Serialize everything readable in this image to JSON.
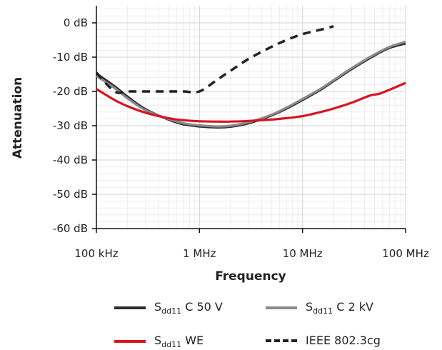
{
  "chart_data": {
    "type": "line",
    "title": "",
    "xlabel": "Frequency",
    "ylabel": "Attenuation",
    "x_scale": "log",
    "xlim": [
      0.1,
      100
    ],
    "ylim": [
      -60,
      5
    ],
    "x_ticks": [
      0.1,
      1,
      10,
      100
    ],
    "x_tick_labels": [
      "100 kHz",
      "1 MHz",
      "10 MHz",
      "100 MHz"
    ],
    "y_ticks": [
      0,
      -10,
      -20,
      -30,
      -40,
      -50,
      -60
    ],
    "y_tick_labels": [
      "0 dB",
      "-10 dB",
      "-20 dB",
      "-30 dB",
      "-40 dB",
      "-50 dB",
      "-60 dB"
    ],
    "grid": true,
    "legend_position": "bottom",
    "series": [
      {
        "name": "Sdd11 C 50 V",
        "label_main": "S",
        "label_sub": "dd11",
        "label_rest": " C 50 V",
        "color": "#2b2b2b",
        "style": "solid",
        "x": [
          0.1,
          0.15,
          0.2,
          0.3,
          0.5,
          0.7,
          1.0,
          1.5,
          2.0,
          3.0,
          5.0,
          7.0,
          10,
          15,
          20,
          30,
          50,
          70,
          100
        ],
        "y": [
          -14.8,
          -18.5,
          -21.5,
          -25.2,
          -28.2,
          -29.6,
          -30.2,
          -30.5,
          -30.3,
          -29.3,
          -27.0,
          -25.0,
          -22.5,
          -19.5,
          -17.0,
          -13.5,
          -9.5,
          -7.3,
          -6.0
        ]
      },
      {
        "name": "Sdd11 C 2 kV",
        "label_main": "S",
        "label_sub": "dd11",
        "label_rest": " C 2 kV",
        "color": "#8a8a8a",
        "style": "solid",
        "x": [
          0.1,
          0.15,
          0.2,
          0.3,
          0.5,
          0.7,
          1.0,
          1.5,
          2.0,
          3.0,
          5.0,
          7.0,
          10,
          15,
          20,
          30,
          50,
          70,
          100
        ],
        "y": [
          -15.5,
          -19.0,
          -22.0,
          -25.5,
          -28.0,
          -29.3,
          -29.9,
          -30.2,
          -30.0,
          -29.0,
          -26.8,
          -24.7,
          -22.2,
          -19.2,
          -16.7,
          -13.2,
          -9.2,
          -7.0,
          -5.5
        ]
      },
      {
        "name": "Sdd11 WE",
        "label_main": "S",
        "label_sub": "dd11",
        "label_rest": " WE",
        "color": "#d8141f",
        "style": "solid",
        "x": [
          0.1,
          0.15,
          0.2,
          0.3,
          0.5,
          0.7,
          1.0,
          1.5,
          2.0,
          3.0,
          5.0,
          7.0,
          10,
          15,
          20,
          30,
          45,
          55,
          70,
          100
        ],
        "y": [
          -19.3,
          -22.5,
          -24.3,
          -26.2,
          -27.8,
          -28.4,
          -28.7,
          -28.8,
          -28.8,
          -28.6,
          -28.2,
          -27.8,
          -27.2,
          -26.0,
          -25.0,
          -23.3,
          -21.2,
          -20.7,
          -19.5,
          -17.5
        ]
      },
      {
        "name": "IEEE 802.3cg",
        "label_main": "IEEE 802.3cg",
        "label_sub": "",
        "label_rest": "",
        "color": "#222222",
        "style": "dashed",
        "x": [
          0.1,
          0.15,
          0.2,
          0.3,
          0.5,
          0.7,
          1.0,
          1.5,
          2.0,
          3.0,
          5.0,
          7.0,
          10,
          15,
          20
        ],
        "y": [
          -14.5,
          -20.0,
          -20.0,
          -20.0,
          -20.0,
          -20.0,
          -20.0,
          -16.5,
          -14.0,
          -10.5,
          -7.0,
          -5.0,
          -3.3,
          -2.0,
          -1.0
        ]
      }
    ]
  }
}
